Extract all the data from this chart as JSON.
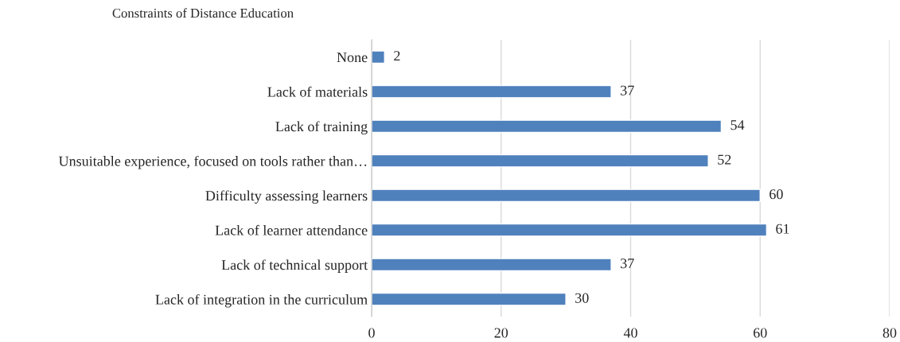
{
  "chart_data": {
    "type": "bar",
    "orientation": "horizontal",
    "title": "Constraints of Distance Education",
    "categories": [
      "None",
      "Lack of materials",
      "Lack of training",
      "Unsuitable experience, focused on tools rather than…",
      "Difficulty assessing learners",
      "Lack of learner attendance",
      "Lack of technical support",
      "Lack of integration in the curriculum"
    ],
    "values": [
      2,
      37,
      54,
      52,
      60,
      61,
      37,
      30
    ],
    "color": "#4f81bd",
    "xlim": [
      0,
      80
    ],
    "xticks": [
      0,
      20,
      40,
      60,
      80
    ],
    "grid": "x",
    "data_labels": true,
    "legend": false
  }
}
